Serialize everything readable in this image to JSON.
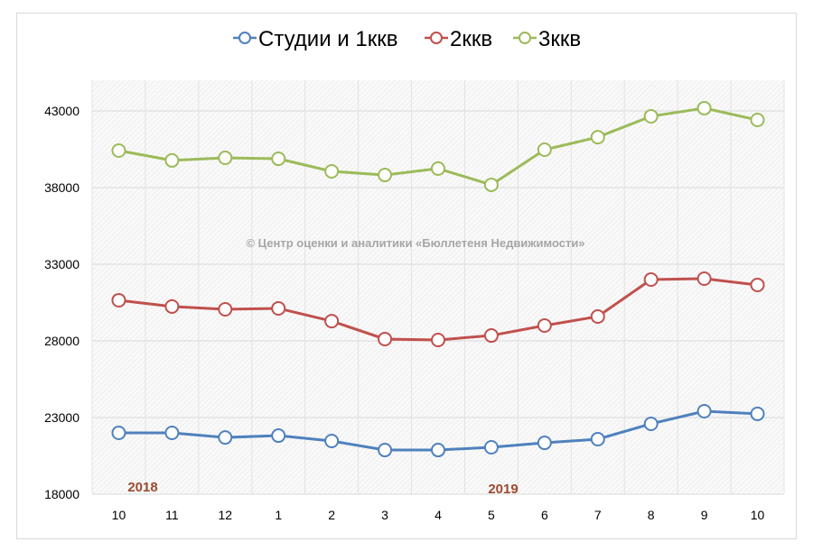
{
  "chart_data": {
    "type": "line",
    "title": "",
    "xlabel": "",
    "ylabel": "",
    "categories": [
      "10",
      "11",
      "12",
      "1",
      "2",
      "3",
      "4",
      "5",
      "6",
      "7",
      "8",
      "9",
      "10"
    ],
    "ylim": [
      18000,
      45000
    ],
    "yticks": [
      18000,
      23000,
      28000,
      33000,
      38000,
      43000
    ],
    "ytick_labels": [
      "18000",
      "23000",
      "28000",
      "33000",
      "38000",
      "43000"
    ],
    "grid": true,
    "legend_position": "top",
    "series": [
      {
        "name": "Студии и 1ккв",
        "color": "#4f81bd",
        "values": [
          22000,
          22000,
          21700,
          21820,
          21470,
          20880,
          20880,
          21060,
          21350,
          21590,
          22590,
          23410,
          23240
        ]
      },
      {
        "name": "2ккв",
        "color": "#c0504d",
        "values": [
          30650,
          30240,
          30060,
          30120,
          29290,
          28120,
          28060,
          28350,
          29000,
          29590,
          32000,
          32060,
          31650
        ]
      },
      {
        "name": "3ккв",
        "color": "#9bbb59",
        "values": [
          40410,
          39770,
          39940,
          39880,
          39060,
          38820,
          39240,
          38180,
          40470,
          41290,
          42650,
          43180,
          42410
        ]
      }
    ],
    "annotations": [
      {
        "text": "2018",
        "at_category_index": 0
      },
      {
        "text": "2019",
        "at_category_index": 7
      }
    ],
    "watermark": "© Центр оценки и аналитики «Бюллетеня Недвижимости»"
  }
}
